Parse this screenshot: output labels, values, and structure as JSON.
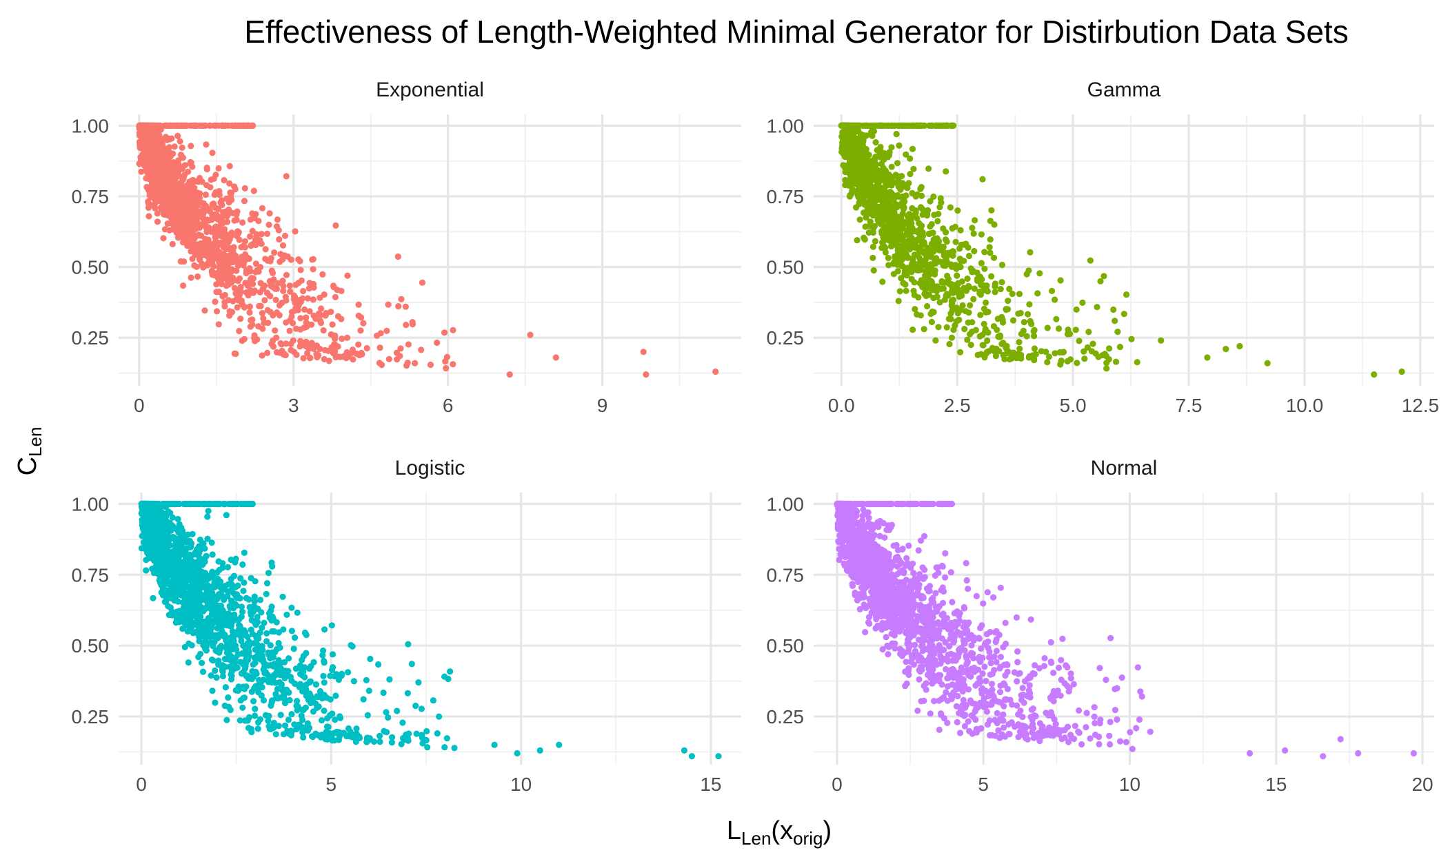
{
  "chart_data": {
    "type": "scatter",
    "title": "Effectiveness of Length-Weighted Minimal Generator for Distirbution Data Sets",
    "xlabel": {
      "main": "L",
      "sub1": "Len",
      "open": "(x",
      "sub2": "orig",
      "close": ")"
    },
    "ylabel": {
      "main": "C",
      "sub": "Len"
    },
    "facets": [
      {
        "name": "Exponential",
        "color": "#F8766D",
        "xlim": [
          -0.4,
          11.7
        ],
        "ylim": [
          0.08,
          1.04
        ],
        "xticks": [
          0,
          3,
          6,
          9
        ],
        "xtick_labels": [
          "0",
          "3",
          "6",
          "9"
        ],
        "yticks": [
          0.25,
          0.5,
          0.75,
          1.0
        ],
        "ytick_labels": [
          "0.25",
          "0.50",
          "0.75",
          "1.00"
        ],
        "x_max": 11.2,
        "n_points": 1500,
        "outliers": [
          [
            9.8,
            0.2
          ],
          [
            9.85,
            0.12
          ],
          [
            11.2,
            0.13
          ],
          [
            8.1,
            0.18
          ],
          [
            7.6,
            0.26
          ],
          [
            7.2,
            0.12
          ]
        ]
      },
      {
        "name": "Gamma",
        "color": "#7CAE00",
        "xlim": [
          -0.6,
          12.8
        ],
        "ylim": [
          0.08,
          1.04
        ],
        "xticks": [
          0,
          2.5,
          5,
          7.5,
          10,
          12.5
        ],
        "xtick_labels": [
          "0.0",
          "2.5",
          "5.0",
          "7.5",
          "10.0",
          "12.5"
        ],
        "yticks": [
          0.25,
          0.5,
          0.75,
          1.0
        ],
        "ytick_labels": [
          "0.25",
          "0.50",
          "0.75",
          "1.00"
        ],
        "x_max": 12.1,
        "n_points": 1300,
        "outliers": [
          [
            11.5,
            0.12
          ],
          [
            12.1,
            0.13
          ],
          [
            9.2,
            0.16
          ],
          [
            8.6,
            0.22
          ],
          [
            8.3,
            0.21
          ],
          [
            7.9,
            0.18
          ],
          [
            6.9,
            0.24
          ]
        ]
      },
      {
        "name": "Logistic",
        "color": "#00BFC4",
        "xlim": [
          -0.6,
          15.8
        ],
        "ylim": [
          0.08,
          1.04
        ],
        "xticks": [
          0,
          5,
          10,
          15
        ],
        "xtick_labels": [
          "0",
          "5",
          "10",
          "15"
        ],
        "yticks": [
          0.25,
          0.5,
          0.75,
          1.0
        ],
        "ytick_labels": [
          "0.25",
          "0.50",
          "0.75",
          "1.00"
        ],
        "x_max": 15.2,
        "n_points": 1700,
        "outliers": [
          [
            14.3,
            0.13
          ],
          [
            14.5,
            0.11
          ],
          [
            15.2,
            0.11
          ],
          [
            11.0,
            0.15
          ],
          [
            10.5,
            0.13
          ],
          [
            9.9,
            0.12
          ],
          [
            9.3,
            0.15
          ]
        ]
      },
      {
        "name": "Normal",
        "color": "#C77CFF",
        "xlim": [
          -0.8,
          20.4
        ],
        "ylim": [
          0.08,
          1.04
        ],
        "xticks": [
          0,
          5,
          10,
          15,
          20
        ],
        "xtick_labels": [
          "0",
          "5",
          "10",
          "15",
          "20"
        ],
        "yticks": [
          0.25,
          0.5,
          0.75,
          1.0
        ],
        "ytick_labels": [
          "0.25",
          "0.50",
          "0.75",
          "1.00"
        ],
        "x_max": 19.7,
        "n_points": 1800,
        "outliers": [
          [
            19.7,
            0.12
          ],
          [
            17.8,
            0.12
          ],
          [
            17.2,
            0.17
          ],
          [
            16.6,
            0.11
          ],
          [
            15.3,
            0.13
          ],
          [
            14.1,
            0.12
          ]
        ]
      }
    ]
  }
}
